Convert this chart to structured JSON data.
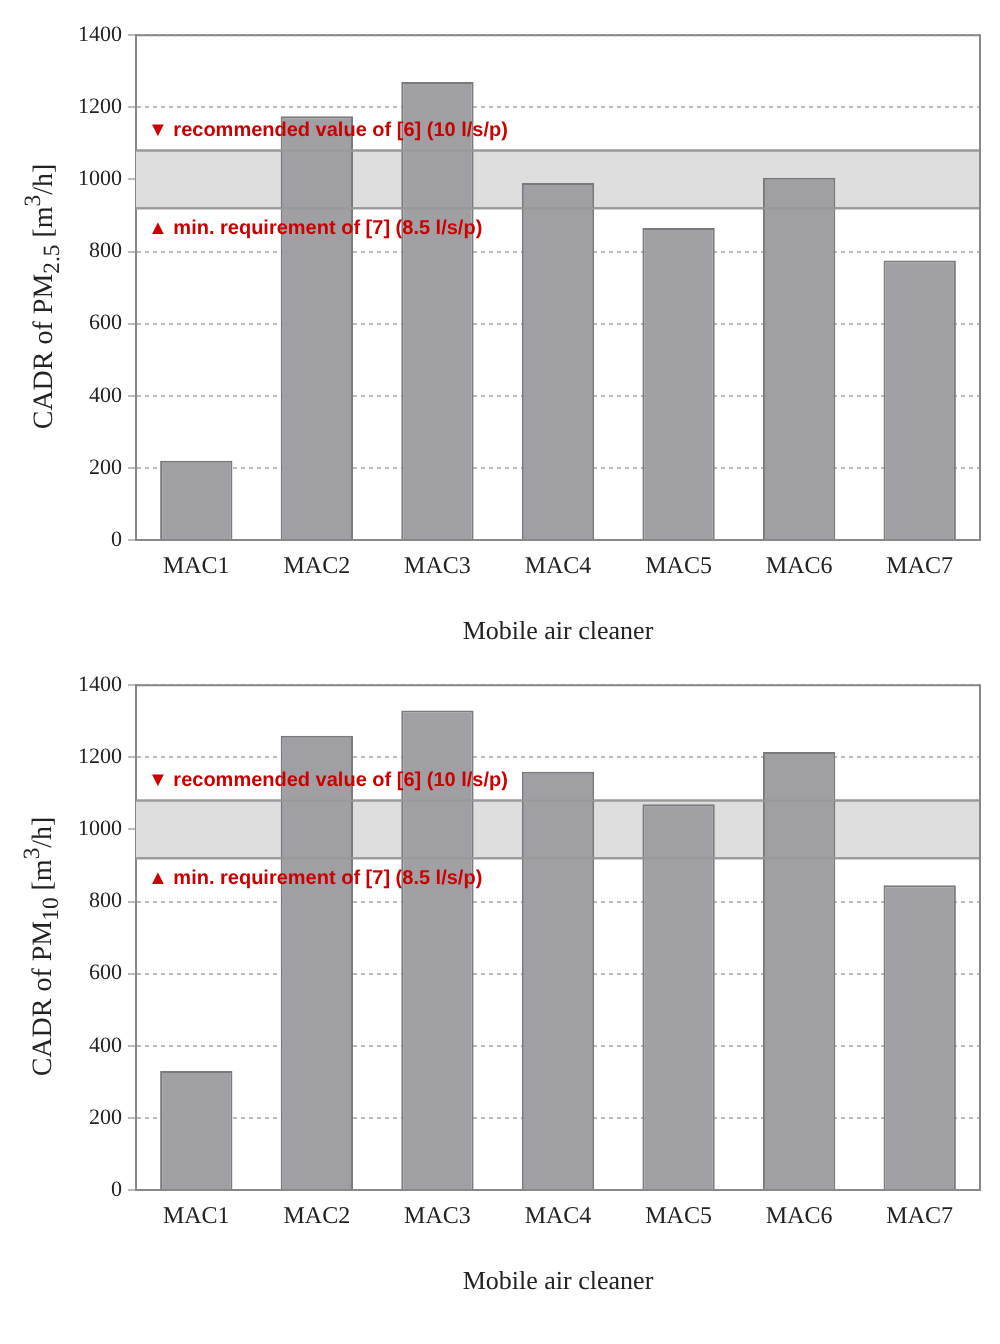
{
  "chart_data": [
    {
      "type": "bar",
      "xlabel": "Mobile air cleaner",
      "ylabel": "CADR of PM$_{2.5}$ [m$^{3}$/h]",
      "categories": [
        "MAC1",
        "MAC2",
        "MAC3",
        "MAC4",
        "MAC5",
        "MAC6",
        "MAC7"
      ],
      "values": [
        220,
        1175,
        1270,
        990,
        865,
        1005,
        775
      ],
      "color": "#a0a0a4",
      "ylim": [
        0,
        1400
      ],
      "yticks": [
        0,
        200,
        400,
        600,
        800,
        1000,
        1200,
        1400
      ],
      "grid": "y",
      "legend": false,
      "bands": [
        {
          "axis": "y",
          "from": 920,
          "to": 1080,
          "color": "#dedede"
        }
      ],
      "ref_lines": [
        {
          "axis": "y",
          "value": 1080,
          "label": "▼ recommended value of [6] (10 l/s/p)",
          "color": "#999999"
        },
        {
          "axis": "y",
          "value": 920,
          "label": "▲ min. requirement of [7] (8.5 l/s/p)",
          "color": "#999999"
        }
      ]
    },
    {
      "type": "bar",
      "xlabel": "Mobile air cleaner",
      "ylabel": "CADR of PM$_{10}$ [m$^{3}$/h]",
      "categories": [
        "MAC1",
        "MAC2",
        "MAC3",
        "MAC4",
        "MAC5",
        "MAC6",
        "MAC7"
      ],
      "values": [
        330,
        1260,
        1330,
        1160,
        1070,
        1215,
        845
      ],
      "color": "#a0a0a4",
      "ylim": [
        0,
        1400
      ],
      "yticks": [
        0,
        200,
        400,
        600,
        800,
        1000,
        1200,
        1400
      ],
      "grid": "y",
      "legend": false,
      "bands": [
        {
          "axis": "y",
          "from": 920,
          "to": 1080,
          "color": "#dedede"
        }
      ],
      "ref_lines": [
        {
          "axis": "y",
          "value": 1080,
          "label": "▼ recommended value of [6] (10 l/s/p)",
          "color": "#999999"
        },
        {
          "axis": "y",
          "value": 920,
          "label": "▲ min. requirement of [7] (8.5 l/s/p)",
          "color": "#999999"
        }
      ]
    }
  ]
}
